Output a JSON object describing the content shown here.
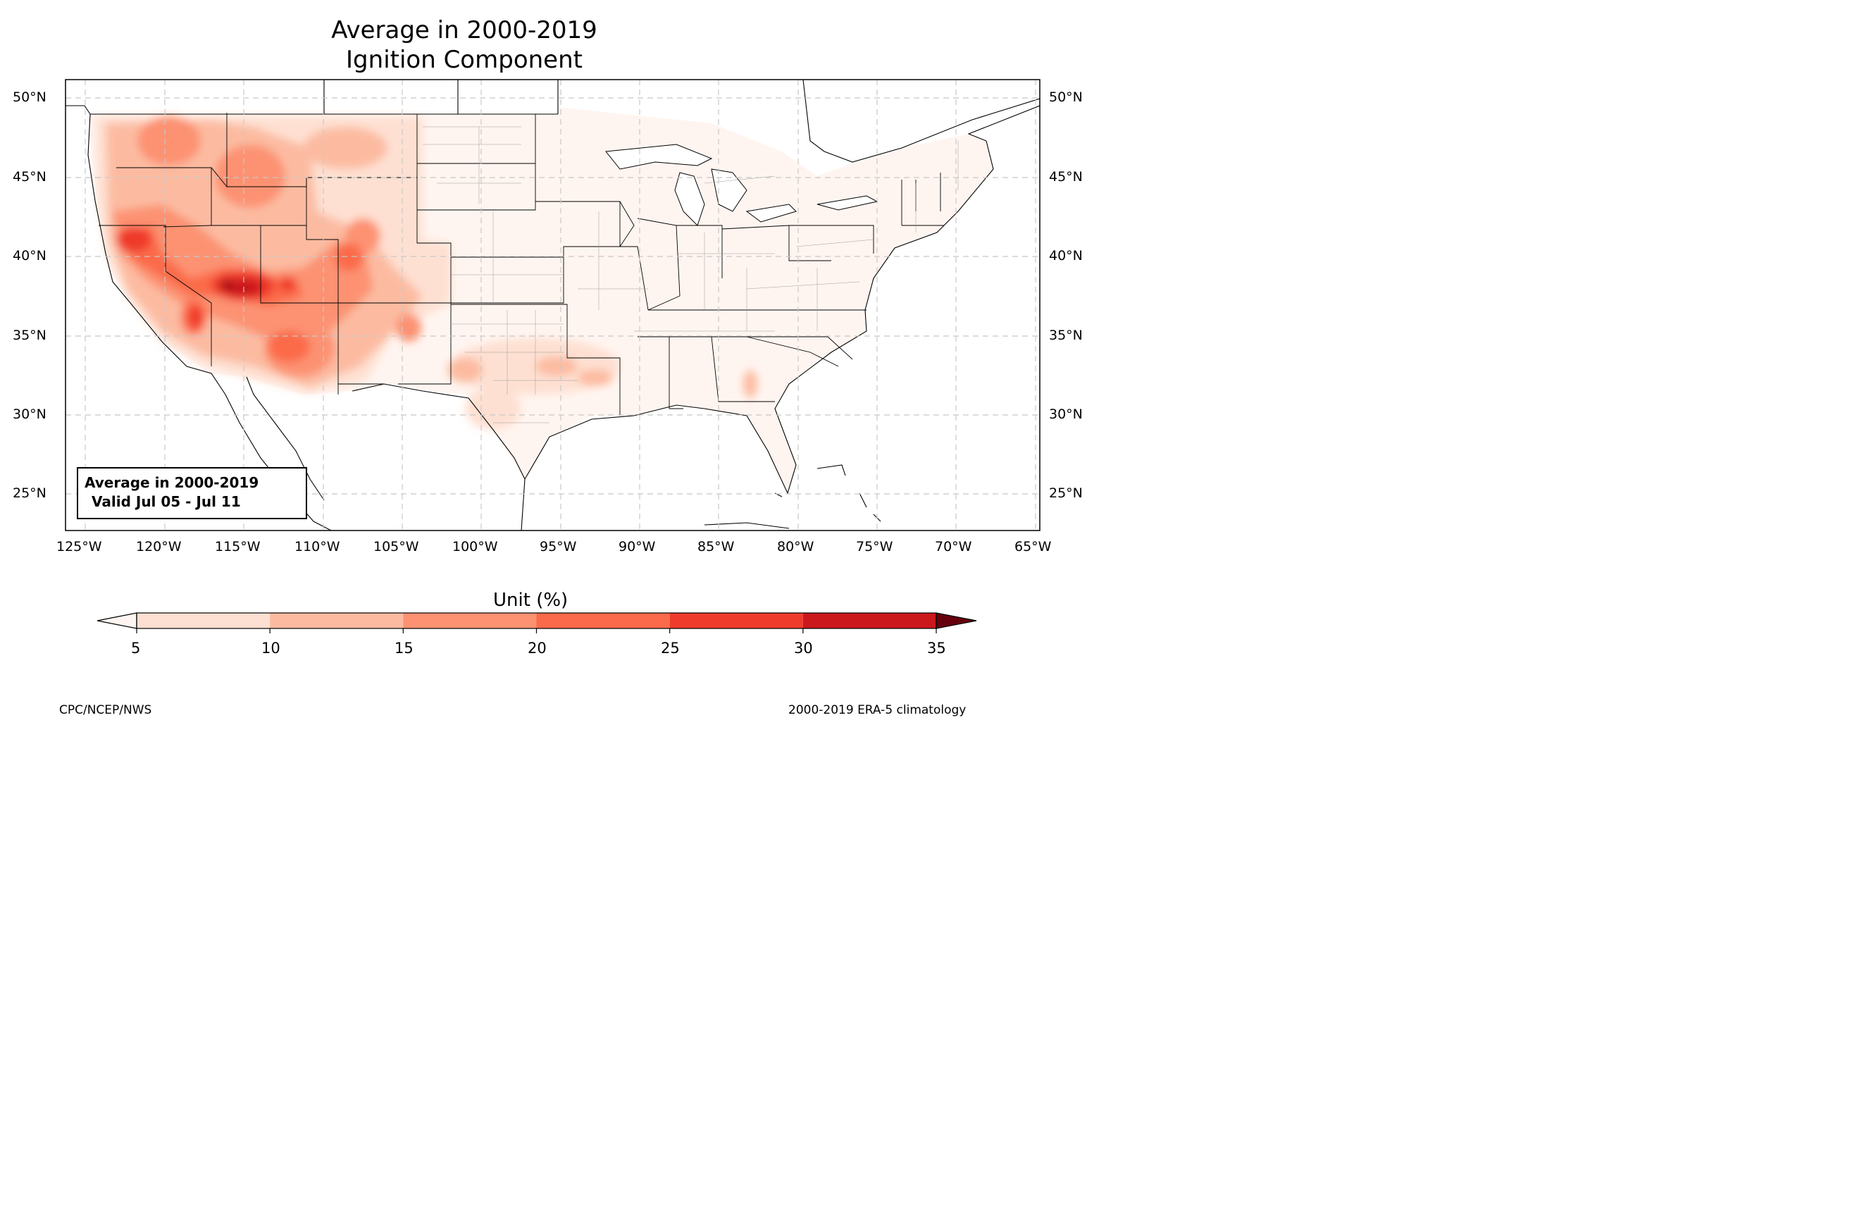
{
  "title": {
    "line1": "Average in 2000-2019",
    "line2": "Ignition Component"
  },
  "map": {
    "region": "Contiguous United States",
    "lon_range": [
      -126.3,
      -64.9
    ],
    "lat_range": [
      22.8,
      51.2
    ],
    "lat_ticks": [
      "50°N",
      "45°N",
      "40°N",
      "35°N",
      "30°N",
      "25°N"
    ],
    "lon_ticks": [
      "125°W",
      "120°W",
      "115°W",
      "110°W",
      "105°W",
      "100°W",
      "95°W",
      "90°W",
      "85°W",
      "80°W",
      "75°W",
      "70°W",
      "65°W"
    ],
    "gridlines": "dashed",
    "labels_on": [
      "left",
      "right",
      "bottom"
    ],
    "info_box": {
      "line1": "Average in 2000-2019",
      "line2": "Valid Jul 05 - Jul 11"
    },
    "field": {
      "variable": "Ignition Component",
      "highest_values_region": "Great Basin / southern Nevada-Utah, 30-35%",
      "elevated_regions": [
        "California Central Valley",
        "Nevada",
        "Utah",
        "Arizona",
        "western Colorado",
        "Idaho",
        "Oregon"
      ],
      "east_values": "5-10%"
    }
  },
  "colorbar": {
    "label": "Unit (%)",
    "ticks": [
      "5",
      "10",
      "15",
      "20",
      "25",
      "30",
      "35"
    ],
    "bins": [
      {
        "from": 5,
        "to": 10,
        "color": "#fee0d2"
      },
      {
        "from": 10,
        "to": 15,
        "color": "#fcbba1"
      },
      {
        "from": 15,
        "to": 20,
        "color": "#fc9272"
      },
      {
        "from": 20,
        "to": 25,
        "color": "#fb6a4a"
      },
      {
        "from": 25,
        "to": 30,
        "color": "#ef3b2c"
      },
      {
        "from": 30,
        "to": 35,
        "color": "#cb181d"
      },
      {
        "from": 35,
        "to": 40,
        "color": "#a50f15"
      }
    ],
    "extend_min_color": "#fff5f0",
    "extend_max_color": "#67000d"
  },
  "footer": {
    "left": "CPC/NCEP/NWS",
    "right": "2000-2019 ERA-5 climatology"
  }
}
